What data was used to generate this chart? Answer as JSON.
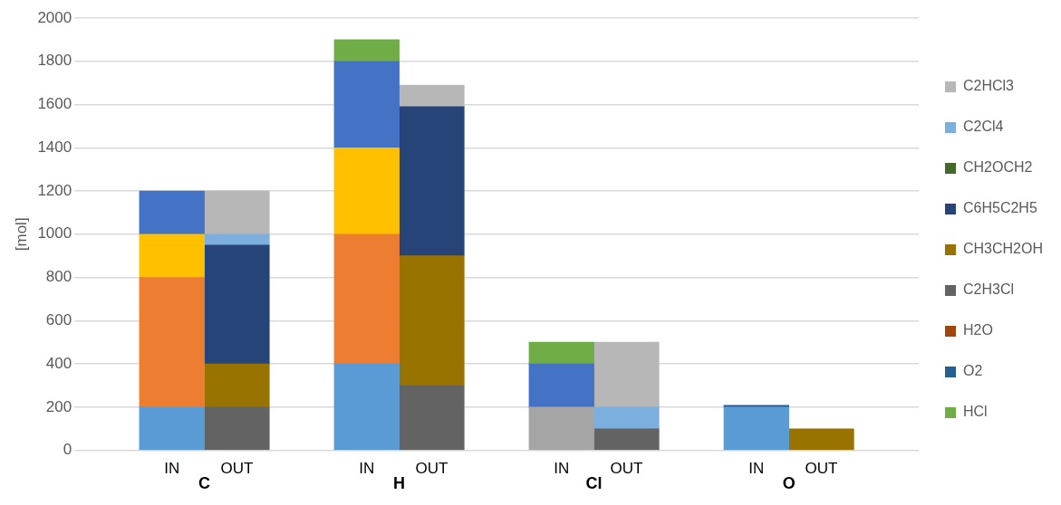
{
  "chart_data": {
    "type": "bar",
    "stacked": true,
    "ylabel": "[mol]",
    "categories": [
      "IN",
      "OUT",
      "IN",
      "OUT",
      "IN",
      "OUT",
      "IN",
      "OUT"
    ],
    "annotations": [
      "C",
      "H",
      "Cl",
      "O"
    ],
    "ylim": [
      0,
      2000
    ],
    "yticks": [
      0,
      200,
      400,
      600,
      800,
      1000,
      1200,
      1400,
      1600,
      1800,
      2000
    ],
    "grid": "y",
    "legend": "right",
    "series": [
      {
        "color": "#5b9bd5",
        "values": [
          200,
          null,
          400,
          null,
          null,
          null,
          200,
          null
        ]
      },
      {
        "color": "#ed7d31",
        "values": [
          600,
          null,
          600,
          null,
          null,
          null,
          null,
          null
        ]
      },
      {
        "color": "#a5a5a5",
        "values": [
          null,
          null,
          null,
          null,
          200,
          null,
          null,
          null
        ]
      },
      {
        "color": "#ffc000",
        "values": [
          200,
          null,
          400,
          null,
          null,
          null,
          null,
          null
        ]
      },
      {
        "color": "#4472c4",
        "values": [
          200,
          null,
          400,
          null,
          200,
          null,
          null,
          null
        ]
      },
      {
        "name": "HCl",
        "color": "#70ad47",
        "values": [
          null,
          null,
          100,
          null,
          100,
          null,
          null,
          null
        ]
      },
      {
        "name": "O2",
        "color": "#255e91",
        "values": [
          null,
          null,
          null,
          null,
          null,
          null,
          8,
          null
        ]
      },
      {
        "name": "H2O",
        "color": "#9e480e",
        "values": [
          null,
          null,
          null,
          null,
          null,
          null,
          null,
          null
        ]
      },
      {
        "name": "C2H3Cl",
        "color": "#636363",
        "values": [
          null,
          200,
          null,
          300,
          null,
          100,
          null,
          null
        ]
      },
      {
        "name": "CH3CH2OH",
        "color": "#997300",
        "values": [
          null,
          200,
          null,
          600,
          null,
          null,
          null,
          100
        ]
      },
      {
        "name": "C6H5C2H5",
        "color": "#264478",
        "values": [
          null,
          550,
          null,
          690,
          null,
          null,
          null,
          null
        ]
      },
      {
        "name": "CH2OCH2",
        "color": "#43682b",
        "values": [
          null,
          null,
          null,
          null,
          null,
          null,
          null,
          null
        ]
      },
      {
        "name": "C2Cl4",
        "color": "#7cafdd",
        "values": [
          null,
          50,
          null,
          null,
          null,
          100,
          null,
          null
        ]
      },
      {
        "name": "C2HCl3",
        "color": "#b7b7b7",
        "values": [
          null,
          200,
          null,
          100,
          null,
          300,
          null,
          null
        ]
      }
    ]
  }
}
